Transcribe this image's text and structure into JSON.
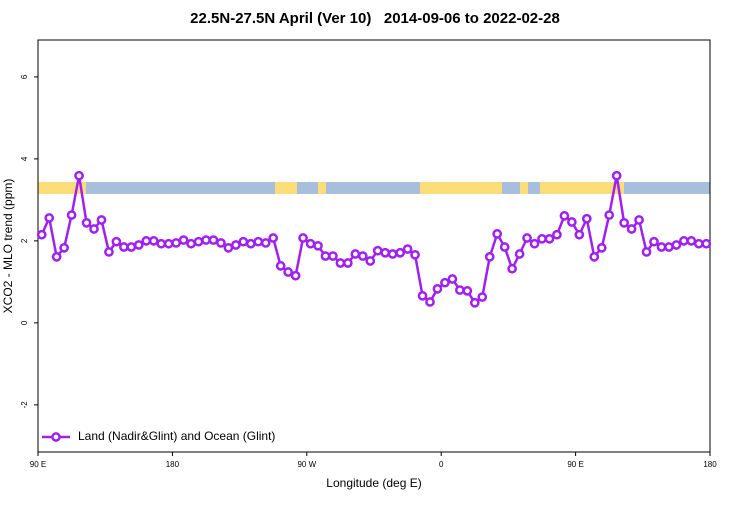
{
  "chart_data": {
    "type": "line",
    "title": "22.5N-27.5N April (Ver 10)   2014-09-06 to 2022-02-28",
    "x_label": "Longitude (deg E)",
    "y_label": "XCO2 - MLO trend (ppm)",
    "x": [
      92.5,
      97.5,
      102.5,
      107.5,
      112.5,
      117.5,
      122.5,
      127.5,
      132.5,
      137.5,
      142.5,
      147.5,
      152.5,
      157.5,
      162.5,
      167.5,
      172.5,
      177.5,
      182.5,
      187.5,
      192.5,
      197.5,
      202.5,
      207.5,
      212.5,
      217.5,
      222.5,
      227.5,
      232.5,
      237.5,
      242.5,
      247.5,
      252.5,
      257.5,
      262.5,
      267.5,
      272.5,
      277.5,
      282.5,
      287.5,
      292.5,
      297.5,
      302.5,
      307.5,
      312.5,
      317.5,
      322.5,
      327.5,
      332.5,
      337.5,
      342.5,
      347.5,
      352.5,
      357.5,
      362.5,
      367.5,
      372.5,
      377.5,
      382.5,
      387.5,
      392.5,
      397.5,
      402.5,
      407.5,
      412.5,
      417.5,
      422.5,
      427.5,
      432.5,
      437.5,
      442.5,
      447.5,
      452.5,
      457.5,
      462.5,
      467.5,
      472.5,
      477.5,
      482.5,
      487.5,
      492.5,
      497.5,
      502.5,
      507.5,
      512.5,
      517.5,
      522.5,
      527.5,
      532.5,
      537.5
    ],
    "series": [
      {
        "name": "Land (Nadir&Glint) and Ocean (Glint)",
        "color": "#a020f0",
        "values": [
          2.15,
          2.56,
          1.61,
          1.83,
          2.63,
          3.59,
          2.44,
          2.29,
          2.51,
          1.73,
          1.98,
          1.85,
          1.85,
          1.9,
          2.0,
          2.0,
          1.93,
          1.93,
          1.95,
          2.02,
          1.93,
          1.98,
          2.02,
          2.02,
          1.95,
          1.83,
          1.9,
          1.98,
          1.93,
          1.98,
          1.95,
          2.07,
          1.39,
          1.24,
          1.15,
          2.07,
          1.93,
          1.88,
          1.63,
          1.63,
          1.46,
          1.46,
          1.68,
          1.63,
          1.51,
          1.76,
          1.71,
          1.68,
          1.71,
          1.8,
          1.66,
          0.66,
          0.51,
          0.83,
          0.98,
          1.07,
          0.8,
          0.78,
          0.49,
          0.63,
          1.61,
          2.17,
          1.85,
          1.32,
          1.68,
          2.07,
          1.93,
          2.05,
          2.05,
          2.15,
          2.61,
          2.46,
          2.15,
          2.54,
          1.61,
          1.83,
          2.63,
          3.59,
          2.44,
          2.29,
          2.51,
          1.73,
          1.98,
          1.85,
          1.85,
          1.9,
          2.0,
          2.0,
          1.93,
          1.93
        ]
      }
    ],
    "xlim": [
      90,
      540
    ],
    "xticks": [
      {
        "value": 90,
        "label": "90 E"
      },
      180,
      {
        "value": 270,
        "label": "90 W"
      },
      {
        "value": 360,
        "label": "0"
      },
      {
        "value": 450,
        "label": "90 E"
      },
      {
        "value": 540,
        "label": "180"
      }
    ],
    "ylim": [
      -3.15,
      6.9
    ],
    "yticks": [
      -2,
      0,
      2,
      4,
      6
    ],
    "legend": "lower left"
  }
}
